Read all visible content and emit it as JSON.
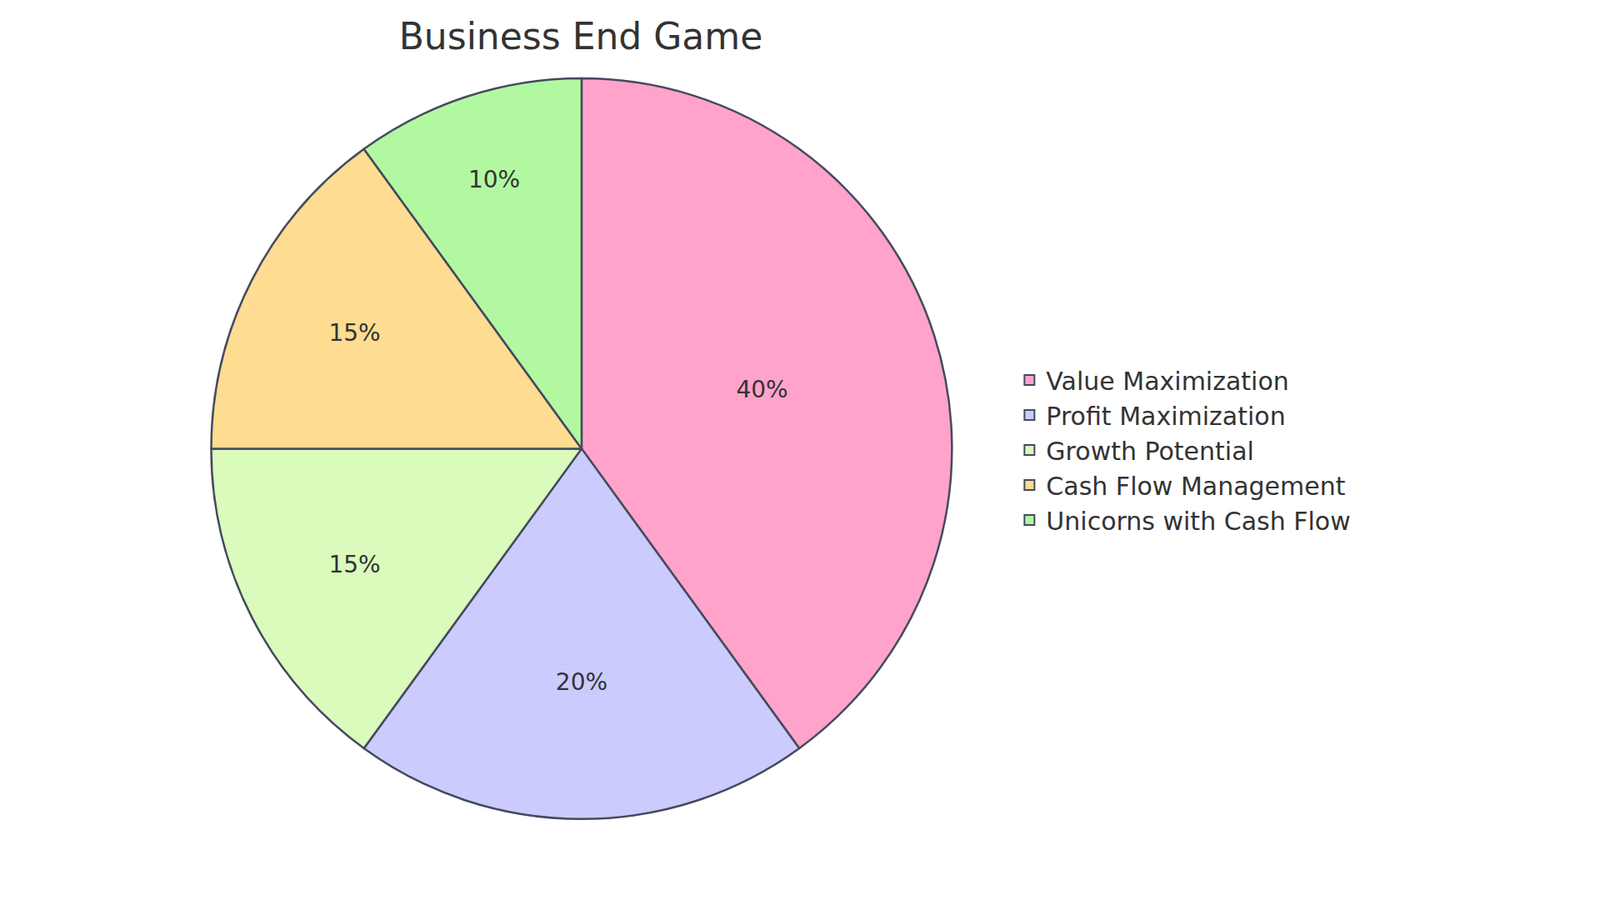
{
  "chart_data": {
    "type": "pie",
    "title": "Business End Game",
    "categories": [
      "Value Maximization",
      "Profit Maximization",
      "Growth Potential",
      "Cash Flow Management",
      "Unicorns with Cash Flow"
    ],
    "values": [
      40,
      20,
      15,
      15,
      10
    ],
    "value_labels": [
      "40%",
      "20%",
      "15%",
      "15%",
      "10%"
    ],
    "colors": [
      "#ffa3cb",
      "#cbcbfe",
      "#dafbbb",
      "#fedc92",
      "#b2f8a1"
    ],
    "data_labels": true,
    "legend": "right"
  }
}
